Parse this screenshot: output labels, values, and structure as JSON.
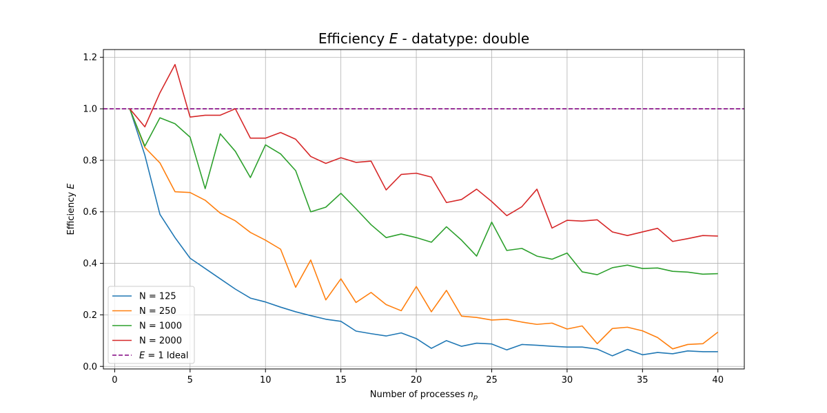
{
  "chart_data": {
    "type": "line",
    "title": {
      "prefix": "Efficiency ",
      "italic": "E",
      "suffix": " - datatype: double"
    },
    "xlabel": {
      "prefix": "Number of processes ",
      "italic": "n",
      "sub": "p"
    },
    "ylabel": {
      "prefix": "Efficiency ",
      "italic": "E"
    },
    "xlim": [
      -0.75,
      41.75
    ],
    "ylim": [
      -0.01,
      1.23
    ],
    "xticks": [
      0,
      5,
      10,
      15,
      20,
      25,
      30,
      35,
      40
    ],
    "yticks": [
      0.0,
      0.2,
      0.4,
      0.6,
      0.8,
      1.0,
      1.2
    ],
    "ytick_labels": [
      "0.0",
      "0.2",
      "0.4",
      "0.6",
      "0.8",
      "1.0",
      "1.2"
    ],
    "grid": true,
    "legend_position": "lower-left",
    "x": [
      1,
      2,
      3,
      4,
      5,
      6,
      7,
      8,
      9,
      10,
      11,
      12,
      13,
      14,
      15,
      16,
      17,
      18,
      19,
      20,
      21,
      22,
      23,
      24,
      25,
      26,
      27,
      28,
      29,
      30,
      31,
      32,
      33,
      34,
      35,
      36,
      37,
      38,
      39,
      40
    ],
    "series": [
      {
        "name": "N = 125",
        "color": "#1f77b4",
        "values": [
          1.0,
          0.82,
          0.59,
          0.5,
          0.42,
          0.38,
          0.34,
          0.3,
          0.265,
          0.25,
          0.23,
          0.212,
          0.197,
          0.183,
          0.175,
          0.137,
          0.127,
          0.118,
          0.13,
          0.108,
          0.07,
          0.1,
          0.078,
          0.09,
          0.087,
          0.064,
          0.085,
          0.082,
          0.078,
          0.075,
          0.075,
          0.067,
          0.041,
          0.066,
          0.045,
          0.054,
          0.049,
          0.06,
          0.057,
          0.057
        ]
      },
      {
        "name": "N = 250",
        "color": "#ff7f0e",
        "values": [
          1.0,
          0.85,
          0.79,
          0.678,
          0.675,
          0.645,
          0.595,
          0.565,
          0.52,
          0.49,
          0.455,
          0.307,
          0.413,
          0.258,
          0.34,
          0.248,
          0.287,
          0.24,
          0.216,
          0.31,
          0.212,
          0.295,
          0.195,
          0.19,
          0.18,
          0.183,
          0.172,
          0.163,
          0.168,
          0.145,
          0.157,
          0.088,
          0.147,
          0.152,
          0.138,
          0.112,
          0.068,
          0.085,
          0.088,
          0.133
        ]
      },
      {
        "name": "N = 1000",
        "color": "#2ca02c",
        "values": [
          1.0,
          0.855,
          0.965,
          0.942,
          0.89,
          0.69,
          0.903,
          0.835,
          0.733,
          0.86,
          0.825,
          0.76,
          0.6,
          0.618,
          0.672,
          0.612,
          0.55,
          0.5,
          0.514,
          0.5,
          0.482,
          0.542,
          0.49,
          0.428,
          0.56,
          0.45,
          0.458,
          0.428,
          0.416,
          0.44,
          0.367,
          0.356,
          0.383,
          0.393,
          0.38,
          0.382,
          0.369,
          0.366,
          0.358,
          0.36
        ]
      },
      {
        "name": "N = 2000",
        "color": "#d62728",
        "values": [
          1.0,
          0.93,
          1.062,
          1.172,
          0.968,
          0.975,
          0.975,
          1.0,
          0.886,
          0.886,
          0.908,
          0.882,
          0.815,
          0.788,
          0.81,
          0.792,
          0.797,
          0.685,
          0.745,
          0.75,
          0.735,
          0.636,
          0.648,
          0.688,
          0.64,
          0.585,
          0.62,
          0.688,
          0.537,
          0.567,
          0.564,
          0.569,
          0.522,
          0.508,
          0.522,
          0.536,
          0.485,
          0.496,
          0.508,
          0.506
        ]
      }
    ],
    "reference_line": {
      "y": 1.0,
      "color": "#800080",
      "label_italic": "E",
      "label_rest": " = 1 Ideal"
    }
  }
}
